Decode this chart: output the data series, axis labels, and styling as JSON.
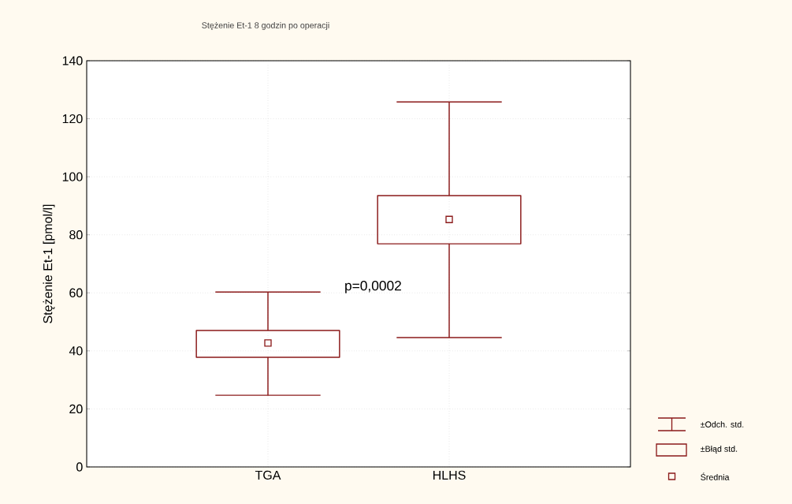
{
  "chart_data": {
    "type": "box",
    "title": "Stężenie Et-1  8 godzin po operacji",
    "ylabel": "Stężenie Et-1 [pmol/l]",
    "categories": [
      "TGA",
      "HLHS"
    ],
    "series": [
      {
        "color": "#8b1a1a",
        "boxes": [
          {
            "low": 24.7,
            "q1": 37.8,
            "median": 42.7,
            "q3": 47.0,
            "high": 60.3
          },
          {
            "low": 44.6,
            "q1": 76.9,
            "median": 85.3,
            "q3": 93.5,
            "high": 125.8
          }
        ]
      }
    ],
    "ylim": [
      0,
      140
    ],
    "yticks": [
      0,
      20,
      40,
      60,
      80,
      100,
      120,
      140
    ],
    "grid": true,
    "annotations": [
      "p=0,0002",
      "±Odch. std.",
      "±Błąd std.",
      "Średnia"
    ]
  }
}
